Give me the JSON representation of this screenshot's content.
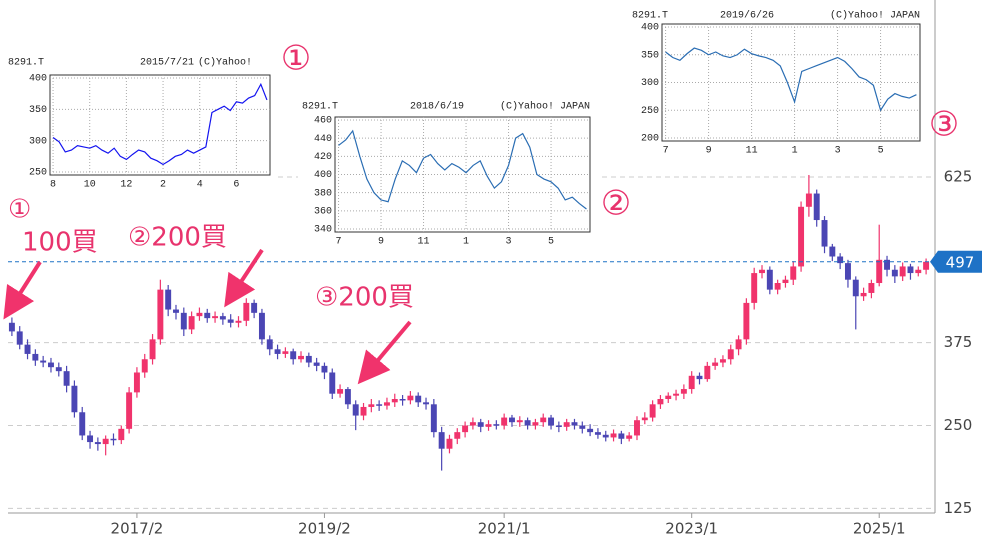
{
  "chart_data": [
    {
      "type": "candlestick",
      "categories": [
        null,
        null,
        null,
        null,
        null,
        null,
        null,
        null,
        null,
        null,
        null,
        null,
        null,
        null,
        null,
        null,
        "2017/2",
        null,
        null,
        null,
        null,
        null,
        null,
        null,
        null,
        null,
        null,
        null,
        null,
        null,
        null,
        null,
        null,
        null,
        null,
        null,
        null,
        null,
        null,
        null,
        "2019/2",
        null,
        null,
        null,
        null,
        null,
        null,
        null,
        null,
        null,
        null,
        null,
        null,
        null,
        null,
        null,
        null,
        null,
        null,
        null,
        null,
        null,
        null,
        "2021/1",
        null,
        null,
        null,
        null,
        null,
        null,
        null,
        null,
        null,
        null,
        null,
        null,
        null,
        null,
        null,
        null,
        null,
        null,
        null,
        null,
        null,
        null,
        null,
        "2023/1",
        null,
        null,
        null,
        null,
        null,
        null,
        null,
        null,
        null,
        null,
        null,
        null,
        null,
        null,
        null,
        null,
        null,
        null,
        null,
        null,
        null,
        null,
        null,
        "2025/1",
        null,
        null,
        null,
        null,
        null,
        null
      ],
      "open": [
        405,
        392,
        372,
        358,
        348,
        345,
        338,
        332,
        310,
        270,
        235,
        225,
        222,
        230,
        228,
        245,
        300,
        330,
        350,
        380,
        455,
        425,
        420,
        395,
        415,
        420,
        412,
        415,
        410,
        405,
        408,
        435,
        420,
        380,
        365,
        358,
        362,
        350,
        355,
        345,
        340,
        330,
        298,
        305,
        282,
        265,
        278,
        282,
        280,
        285,
        290,
        288,
        295,
        285,
        282,
        240,
        215,
        230,
        240,
        250,
        255,
        248,
        252,
        250,
        262,
        255,
        258,
        250,
        255,
        262,
        250,
        248,
        255,
        250,
        245,
        240,
        236,
        232,
        238,
        230,
        235,
        258,
        262,
        282,
        290,
        295,
        298,
        305,
        325,
        320,
        340,
        345,
        350,
        365,
        380,
        435,
        480,
        485,
        455,
        465,
        470,
        490,
        580,
        600,
        560,
        520,
        505,
        495,
        470,
        445,
        450,
        465,
        500,
        485,
        475,
        490,
        480,
        485
      ],
      "high": [
        413,
        400,
        380,
        365,
        355,
        352,
        345,
        340,
        318,
        278,
        242,
        232,
        235,
        238,
        250,
        308,
        338,
        358,
        388,
        470,
        462,
        432,
        428,
        422,
        428,
        426,
        422,
        420,
        418,
        415,
        442,
        440,
        426,
        386,
        372,
        368,
        366,
        362,
        360,
        352,
        345,
        336,
        312,
        308,
        288,
        284,
        290,
        288,
        292,
        298,
        296,
        302,
        300,
        292,
        290,
        248,
        236,
        246,
        256,
        262,
        260,
        258,
        258,
        268,
        266,
        264,
        262,
        260,
        268,
        266,
        256,
        260,
        260,
        256,
        252,
        246,
        242,
        244,
        242,
        240,
        264,
        270,
        288,
        296,
        300,
        304,
        312,
        332,
        330,
        346,
        352,
        356,
        372,
        386,
        442,
        488,
        492,
        490,
        470,
        476,
        498,
        588,
        628,
        606,
        566,
        524,
        510,
        500,
        475,
        458,
        470,
        553,
        506,
        492,
        496,
        494,
        490,
        502
      ],
      "low": [
        385,
        365,
        350,
        340,
        338,
        330,
        324,
        300,
        262,
        228,
        215,
        212,
        205,
        220,
        222,
        238,
        292,
        322,
        342,
        372,
        415,
        410,
        385,
        388,
        408,
        405,
        405,
        402,
        398,
        398,
        400,
        412,
        372,
        356,
        350,
        352,
        342,
        345,
        338,
        332,
        320,
        290,
        292,
        275,
        243,
        258,
        270,
        272,
        274,
        278,
        280,
        282,
        278,
        274,
        232,
        182,
        208,
        222,
        232,
        244,
        240,
        242,
        244,
        244,
        248,
        248,
        244,
        244,
        248,
        244,
        240,
        242,
        244,
        238,
        234,
        230,
        226,
        226,
        222,
        226,
        228,
        252,
        256,
        275,
        284,
        288,
        290,
        298,
        312,
        316,
        334,
        338,
        342,
        356,
        372,
        425,
        472,
        448,
        448,
        458,
        462,
        482,
        565,
        550,
        510,
        498,
        486,
        458,
        395,
        438,
        442,
        460,
        475,
        465,
        468,
        470,
        475,
        478
      ],
      "close": [
        392,
        372,
        358,
        348,
        345,
        338,
        332,
        310,
        270,
        235,
        225,
        222,
        230,
        228,
        245,
        300,
        330,
        350,
        380,
        455,
        425,
        420,
        395,
        415,
        420,
        412,
        415,
        410,
        405,
        408,
        435,
        420,
        380,
        365,
        358,
        362,
        350,
        355,
        345,
        340,
        330,
        298,
        305,
        282,
        265,
        278,
        282,
        280,
        285,
        290,
        288,
        295,
        285,
        282,
        240,
        215,
        230,
        240,
        250,
        255,
        248,
        252,
        250,
        262,
        255,
        258,
        250,
        255,
        262,
        250,
        248,
        255,
        250,
        245,
        240,
        236,
        232,
        238,
        230,
        235,
        258,
        262,
        282,
        290,
        295,
        298,
        305,
        325,
        320,
        340,
        345,
        350,
        365,
        380,
        435,
        480,
        485,
        455,
        465,
        470,
        490,
        580,
        600,
        560,
        520,
        505,
        495,
        470,
        445,
        450,
        465,
        500,
        485,
        475,
        490,
        480,
        485,
        497
      ],
      "up_color": "#f0336c",
      "down_color": "#4b46b4",
      "last_price": 497,
      "last_price_color": "#1e72c6",
      "ylim": [
        118,
        892
      ],
      "yticks": [
        125,
        250,
        375,
        625
      ],
      "grid": true,
      "annotations": [
        "①",
        "100買",
        "②200買",
        "③200買"
      ]
    },
    {
      "type": "line",
      "symbol": "8291.T",
      "date": "2015/7/21",
      "copyright": "(C)Yahoo!",
      "badge": "①",
      "categories": [
        "8",
        null,
        null,
        null,
        null,
        null,
        "10",
        null,
        null,
        null,
        null,
        null,
        "12",
        null,
        null,
        null,
        null,
        null,
        "2",
        null,
        null,
        null,
        null,
        null,
        "4",
        null,
        null,
        null,
        null,
        null,
        "6",
        null,
        null,
        null,
        null,
        null
      ],
      "values": [
        305,
        298,
        282,
        285,
        292,
        290,
        288,
        292,
        285,
        280,
        288,
        275,
        270,
        278,
        285,
        282,
        272,
        268,
        262,
        268,
        275,
        278,
        285,
        280,
        285,
        290,
        345,
        350,
        355,
        348,
        362,
        360,
        368,
        372,
        390,
        365
      ],
      "color": "#1414f0",
      "ylim": [
        250,
        400
      ],
      "yticks": [
        250,
        300,
        350,
        400
      ],
      "grid": true
    },
    {
      "type": "line",
      "symbol": "8291.T",
      "date": "2018/6/19",
      "copyright": "(C)Yahoo! JAPAN",
      "badge": "②",
      "categories": [
        "7",
        null,
        null,
        null,
        null,
        null,
        "9",
        null,
        null,
        null,
        null,
        null,
        "11",
        null,
        null,
        null,
        null,
        null,
        "1",
        null,
        null,
        null,
        null,
        null,
        "3",
        null,
        null,
        null,
        null,
        null,
        "5",
        null,
        null,
        null,
        null,
        null
      ],
      "values": [
        432,
        438,
        448,
        420,
        395,
        380,
        372,
        370,
        395,
        415,
        410,
        402,
        418,
        422,
        412,
        405,
        412,
        408,
        402,
        410,
        415,
        398,
        385,
        392,
        410,
        440,
        445,
        430,
        400,
        395,
        392,
        385,
        372,
        375,
        368,
        362
      ],
      "color": "#2a6db3",
      "ylim": [
        340,
        460
      ],
      "yticks": [
        340,
        360,
        380,
        400,
        420,
        440,
        460
      ],
      "grid": true
    },
    {
      "type": "line",
      "symbol": "8291.T",
      "date": "2019/6/26",
      "copyright": "(C)Yahoo! JAPAN",
      "badge": "③",
      "categories": [
        "7",
        null,
        null,
        null,
        null,
        null,
        "9",
        null,
        null,
        null,
        null,
        null,
        "11",
        null,
        null,
        null,
        null,
        null,
        "1",
        null,
        null,
        null,
        null,
        null,
        "3",
        null,
        null,
        null,
        null,
        null,
        "5",
        null,
        null,
        null,
        null,
        null
      ],
      "values": [
        355,
        345,
        340,
        352,
        362,
        358,
        350,
        355,
        348,
        345,
        350,
        360,
        352,
        348,
        345,
        340,
        330,
        300,
        265,
        320,
        325,
        330,
        335,
        340,
        345,
        338,
        325,
        310,
        305,
        295,
        250,
        270,
        280,
        275,
        272,
        278
      ],
      "color": "#2a6db3",
      "ylim": [
        200,
        400
      ],
      "yticks": [
        200,
        250,
        300,
        350,
        400
      ],
      "grid": true
    }
  ]
}
